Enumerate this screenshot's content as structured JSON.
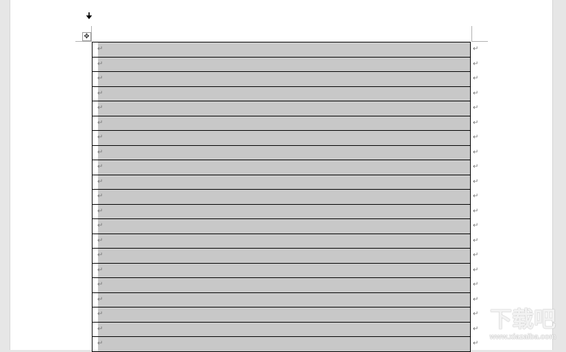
{
  "document": {
    "column_select_icon": "down-arrow-icon",
    "table_move_icon": "four-way-move-icon",
    "paragraph_mark": "↵",
    "row_count": 21,
    "selected_column": 1
  },
  "watermark": {
    "title": "下载吧",
    "url": "www.xiazaiba.com"
  },
  "colors": {
    "selection": "#c8c8c8",
    "background": "#e6e6e6",
    "page": "#ffffff"
  }
}
